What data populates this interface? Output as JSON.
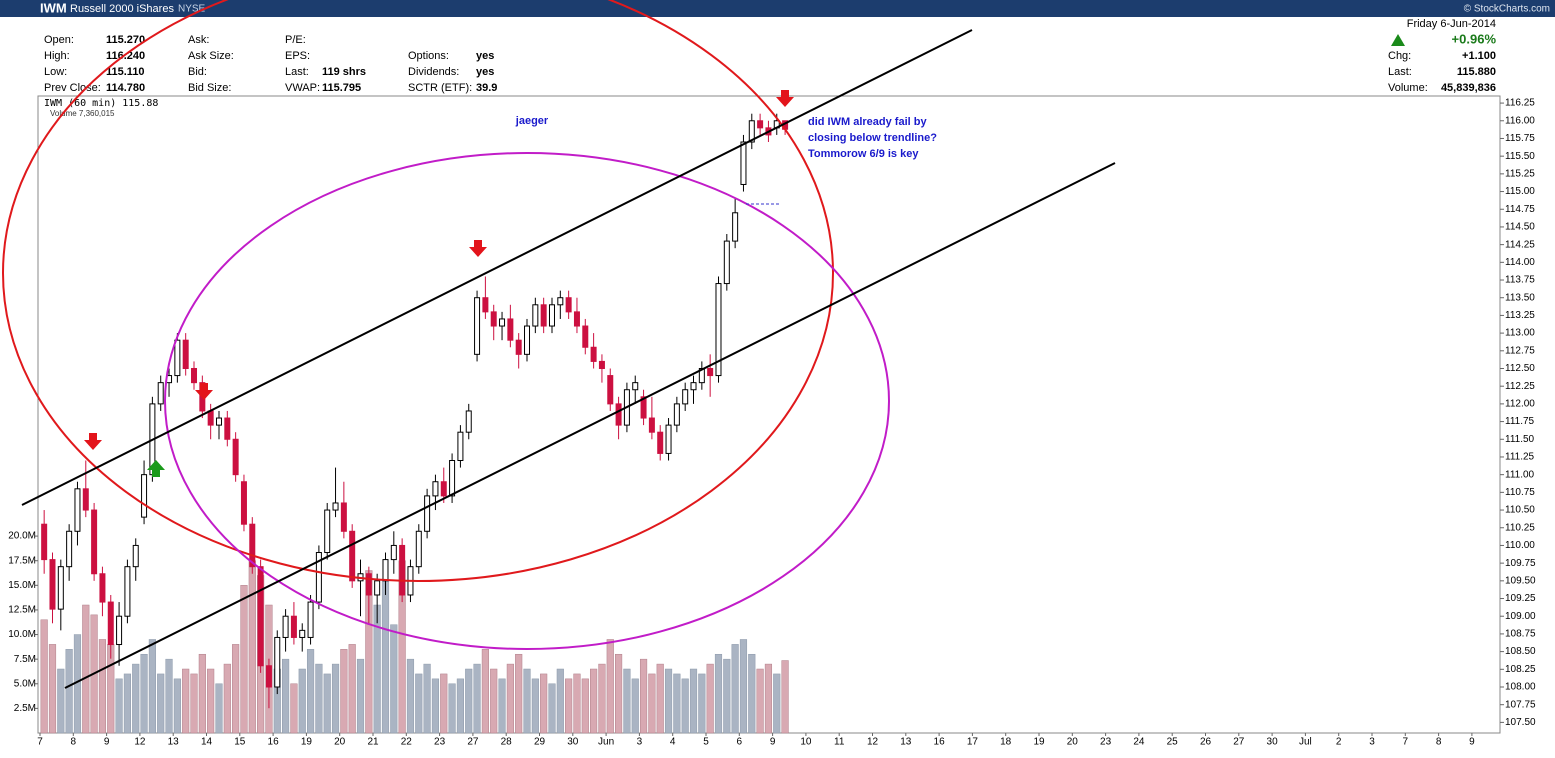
{
  "chart_data": {
    "type": "candlestick",
    "header": {
      "symbol": "IWM",
      "name": "Russell 2000 iShares",
      "exchange": "NYSE",
      "source": "© StockCharts.com",
      "info": [
        [
          {
            "label": "Open:",
            "value": "115.270"
          },
          {
            "label": "High:",
            "value": "116.240"
          },
          {
            "label": "Low:",
            "value": "115.110"
          },
          {
            "label": "Prev Close:",
            "value": "114.780"
          }
        ],
        [
          {
            "label": "Ask:"
          },
          {
            "label": "Ask Size:"
          },
          {
            "label": "Bid:"
          },
          {
            "label": "Bid Size:"
          }
        ],
        [
          {
            "label": "P/E:"
          },
          {
            "label": "EPS:"
          },
          {
            "label": "Last:",
            "value": "119 shrs"
          },
          {
            "label": "VWAP:",
            "value": "115.795"
          }
        ],
        [
          {
            "label": "Options:",
            "value": "yes"
          },
          {
            "label": "Dividends:",
            "value": "yes"
          },
          {
            "label": "SCTR (ETF):",
            "value": "39.9"
          }
        ]
      ],
      "weekday": "Friday",
      "date": "6-Jun-2014",
      "pct_change": "+0.96%",
      "right_info": [
        {
          "label": "Chg:",
          "value": "+1.100"
        },
        {
          "label": "Last:",
          "value": "115.880"
        },
        {
          "label": "Volume:",
          "value": "45,839,836"
        }
      ]
    },
    "legend_price": "IWM (60 min) 115.88",
    "legend_volume": "Volume 7,360,015",
    "annotations": {
      "author": "jaeger",
      "note": [
        "did IWM already fail by",
        "closing below trendline?",
        "Tommorow 6/9 is key"
      ]
    },
    "colors": {
      "up": "#000000",
      "down": "#cc1040",
      "volume_up": "#aab4c3",
      "volume_down": "#d8a9b2"
    },
    "categories": [
      "7",
      "8",
      "9",
      "12",
      "13",
      "14",
      "15",
      "16",
      "19",
      "20",
      "21",
      "22",
      "23",
      "27",
      "28",
      "29",
      "30",
      "Jun",
      "3",
      "4",
      "5",
      "6",
      "9",
      "10",
      "11",
      "12",
      "13",
      "16",
      "17",
      "18",
      "19",
      "20",
      "23",
      "24",
      "25",
      "26",
      "27",
      "30",
      "Jul",
      "2",
      "3",
      "7",
      "8",
      "9"
    ],
    "open": [
      110.3,
      109.8,
      109.1,
      109.7,
      110.2,
      110.8,
      110.5,
      109.6,
      109.2,
      108.6,
      109.0,
      109.7,
      110.4,
      111.0,
      112.0,
      112.3,
      112.4,
      112.9,
      112.5,
      112.3,
      111.9,
      111.7,
      111.8,
      111.5,
      110.9,
      110.3,
      109.7,
      108.3,
      108.0,
      108.7,
      109.0,
      108.7,
      108.7,
      109.2,
      109.9,
      110.5,
      110.6,
      110.2,
      109.5,
      109.6,
      109.3,
      109.5,
      109.8,
      110.0,
      109.3,
      109.7,
      110.2,
      110.7,
      110.9,
      110.7,
      111.2,
      111.6,
      112.7,
      113.5,
      113.3,
      113.1,
      113.2,
      112.9,
      112.7,
      113.1,
      113.4,
      113.1,
      113.4,
      113.5,
      113.3,
      113.1,
      112.8,
      112.6,
      112.4,
      112.0,
      111.7,
      112.2,
      112.1,
      111.8,
      111.6,
      111.3,
      111.7,
      112.0,
      112.2,
      112.3,
      112.5,
      112.4,
      113.7,
      114.3,
      115.1,
      115.7,
      116.0,
      115.9,
      115.9,
      116.0
    ],
    "high": [
      110.5,
      109.9,
      109.8,
      110.3,
      110.9,
      111.2,
      110.6,
      109.7,
      109.3,
      109.2,
      109.8,
      110.1,
      111.2,
      112.1,
      112.4,
      112.5,
      113.0,
      113.0,
      112.6,
      112.4,
      112.0,
      111.9,
      111.9,
      111.6,
      111.0,
      110.4,
      109.8,
      108.4,
      108.8,
      109.1,
      109.2,
      108.9,
      109.3,
      110.0,
      110.6,
      111.1,
      110.9,
      110.3,
      109.8,
      109.7,
      109.6,
      109.9,
      110.2,
      110.1,
      109.8,
      110.3,
      110.8,
      111.0,
      111.1,
      111.3,
      111.7,
      112.0,
      113.6,
      113.8,
      113.4,
      113.3,
      113.4,
      113.0,
      113.2,
      113.5,
      113.5,
      113.5,
      113.6,
      113.6,
      113.5,
      113.2,
      113.0,
      112.7,
      112.5,
      112.1,
      112.3,
      112.4,
      112.2,
      112.1,
      111.7,
      111.8,
      112.1,
      112.3,
      112.4,
      112.6,
      112.7,
      113.8,
      114.4,
      114.9,
      115.8,
      116.1,
      116.1,
      116.0,
      116.1,
      116.0
    ],
    "low": [
      109.6,
      108.9,
      108.8,
      109.5,
      110.0,
      110.4,
      109.5,
      109.0,
      108.4,
      108.3,
      108.9,
      109.5,
      110.3,
      110.9,
      111.9,
      112.1,
      112.3,
      112.4,
      112.2,
      111.8,
      111.5,
      111.5,
      111.4,
      110.9,
      110.2,
      109.6,
      108.2,
      107.7,
      107.9,
      108.5,
      108.6,
      108.5,
      108.6,
      109.1,
      109.8,
      110.4,
      110.1,
      109.4,
      109.0,
      108.9,
      108.9,
      109.3,
      109.6,
      109.2,
      109.2,
      109.6,
      110.1,
      110.5,
      110.6,
      110.6,
      111.1,
      111.5,
      112.6,
      113.2,
      112.9,
      112.9,
      112.8,
      112.5,
      112.6,
      113.0,
      113.0,
      113.0,
      113.2,
      113.2,
      113.0,
      112.7,
      112.5,
      112.3,
      111.9,
      111.5,
      111.6,
      112.0,
      111.7,
      111.5,
      111.2,
      111.2,
      111.6,
      111.9,
      112.0,
      112.2,
      112.1,
      112.3,
      113.6,
      114.2,
      115.0,
      115.6,
      115.8,
      115.7,
      115.8,
      115.8
    ],
    "close": [
      109.8,
      109.1,
      109.7,
      110.2,
      110.8,
      110.5,
      109.6,
      109.2,
      108.6,
      109.0,
      109.7,
      110.0,
      111.0,
      112.0,
      112.3,
      112.4,
      112.9,
      112.5,
      112.3,
      111.9,
      111.7,
      111.8,
      111.5,
      111.0,
      110.3,
      109.7,
      108.3,
      108.0,
      108.7,
      109.0,
      108.7,
      108.8,
      109.2,
      109.9,
      110.5,
      110.6,
      110.2,
      109.5,
      109.6,
      109.3,
      109.5,
      109.8,
      110.0,
      109.3,
      109.7,
      110.2,
      110.7,
      110.9,
      110.7,
      111.2,
      111.6,
      111.9,
      113.5,
      113.3,
      113.1,
      113.2,
      112.9,
      112.7,
      113.1,
      113.4,
      113.1,
      113.4,
      113.5,
      113.3,
      113.1,
      112.8,
      112.6,
      112.5,
      112.0,
      111.7,
      112.2,
      112.3,
      111.8,
      111.6,
      111.3,
      111.7,
      112.0,
      112.2,
      112.3,
      112.5,
      112.4,
      113.7,
      114.3,
      114.7,
      115.7,
      116.0,
      115.9,
      115.8,
      116.0,
      115.88
    ],
    "volume": [
      11500000,
      9000000,
      6500000,
      8500000,
      10000000,
      13000000,
      12000000,
      9500000,
      9000000,
      5500000,
      6000000,
      7000000,
      8000000,
      9500000,
      6000000,
      7500000,
      5500000,
      6500000,
      6000000,
      8000000,
      6500000,
      5000000,
      7000000,
      9000000,
      15000000,
      17500000,
      16000000,
      13000000,
      6500000,
      7500000,
      5000000,
      6500000,
      8500000,
      7000000,
      6000000,
      7000000,
      8500000,
      9000000,
      7500000,
      16500000,
      13000000,
      15500000,
      11000000,
      17500000,
      7500000,
      6000000,
      7000000,
      5500000,
      6000000,
      5000000,
      5500000,
      6500000,
      7000000,
      8500000,
      6500000,
      5500000,
      7000000,
      8000000,
      6500000,
      5500000,
      6000000,
      5000000,
      6500000,
      5500000,
      6000000,
      5500000,
      6500000,
      7000000,
      9500000,
      8000000,
      6500000,
      5500000,
      7500000,
      6000000,
      7000000,
      6500000,
      6000000,
      5500000,
      6500000,
      6000000,
      7000000,
      8000000,
      7500000,
      9000000,
      9500000,
      8000000,
      6500000,
      7000000,
      6000000,
      7360015
    ],
    "ylim": [
      107.35,
      116.35
    ],
    "yticks": [
      {
        "value": 107.5,
        "label": "107.50"
      },
      {
        "value": 107.75,
        "label": "107.75"
      },
      {
        "value": 108,
        "label": "108.00"
      },
      {
        "value": 108.25,
        "label": "108.25"
      },
      {
        "value": 108.5,
        "label": "108.50"
      },
      {
        "value": 108.75,
        "label": "108.75"
      },
      {
        "value": 109,
        "label": "109.00"
      },
      {
        "value": 109.25,
        "label": "109.25"
      },
      {
        "value": 109.5,
        "label": "109.50"
      },
      {
        "value": 109.75,
        "label": "109.75"
      },
      {
        "value": 110,
        "label": "110.00"
      },
      {
        "value": 110.25,
        "label": "110.25"
      },
      {
        "value": 110.5,
        "label": "110.50"
      },
      {
        "value": 110.75,
        "label": "110.75"
      },
      {
        "value": 111,
        "label": "111.00"
      },
      {
        "value": 111.25,
        "label": "111.25"
      },
      {
        "value": 111.5,
        "label": "111.50"
      },
      {
        "value": 111.75,
        "label": "111.75"
      },
      {
        "value": 112,
        "label": "112.00"
      },
      {
        "value": 112.25,
        "label": "112.25"
      },
      {
        "value": 112.5,
        "label": "112.50"
      },
      {
        "value": 112.75,
        "label": "112.75"
      },
      {
        "value": 113,
        "label": "113.00"
      },
      {
        "value": 113.25,
        "label": "113.25"
      },
      {
        "value": 113.5,
        "label": "113.50"
      },
      {
        "value": 113.75,
        "label": "113.75"
      },
      {
        "value": 114,
        "label": "114.00"
      },
      {
        "value": 114.25,
        "label": "114.25"
      },
      {
        "value": 114.5,
        "label": "114.50"
      },
      {
        "value": 114.75,
        "label": "114.75"
      },
      {
        "value": 115,
        "label": "115.00"
      },
      {
        "value": 115.25,
        "label": "115.25"
      },
      {
        "value": 115.5,
        "label": "115.50"
      },
      {
        "value": 115.75,
        "label": "115.75"
      },
      {
        "value": 116,
        "label": "116.00"
      },
      {
        "value": 116.25,
        "label": "116.25"
      }
    ],
    "y2lim": [
      0,
      64700000
    ],
    "y2ticks": [
      {
        "value": 2500000,
        "label": "2.5M"
      },
      {
        "value": 5000000,
        "label": "5.0M"
      },
      {
        "value": 7500000,
        "label": "7.5M"
      },
      {
        "value": 10000000,
        "label": "10.0M"
      },
      {
        "value": 12500000,
        "label": "12.5M"
      },
      {
        "value": 15000000,
        "label": "15.0M"
      },
      {
        "value": 17500000,
        "label": "17.5M"
      },
      {
        "value": 20000000,
        "label": "20.0M"
      }
    ],
    "grid": false
  }
}
